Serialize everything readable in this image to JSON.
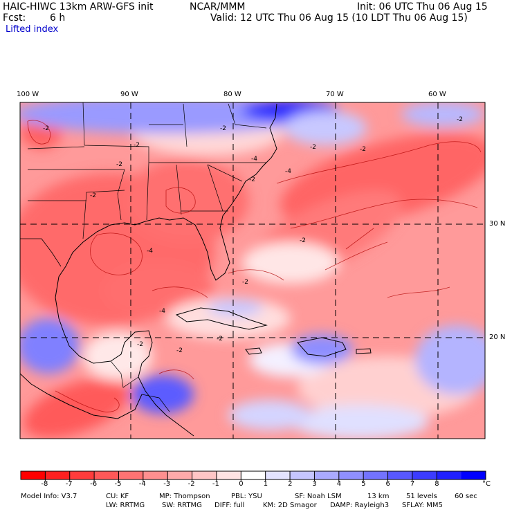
{
  "header": {
    "model": "HAIC-HIWC 13km ARW-GFS init",
    "org": "NCAR/MMM",
    "init": "Init: 06 UTC Thu 06 Aug 15",
    "fcst_label": "Fcst:",
    "fcst_value": "6 h",
    "valid": "Valid: 12 UTC Thu 06 Aug 15 (10 LDT Thu 06 Aug 15)",
    "field": "Lifted index"
  },
  "map": {
    "lon_labels": [
      "100 W",
      "90 W",
      "80 W",
      "70 W",
      "60 W"
    ],
    "lat_labels": [
      "30 N",
      "20 N"
    ],
    "contour_labels": [
      "-2",
      "-2",
      "-2",
      "-2",
      "-4",
      "-2",
      "-2",
      "-4",
      "-2",
      "-2",
      "-2",
      "-4",
      "-2",
      "-2",
      "-2",
      "-2",
      "-4",
      "-2"
    ]
  },
  "colorbar": {
    "labels": [
      "-8",
      "-7",
      "-6",
      "-5",
      "-4",
      "-3",
      "-2",
      "-1",
      "0",
      "1",
      "2",
      "3",
      "4",
      "5",
      "6",
      "7",
      "8"
    ],
    "unit": "°C",
    "colors": [
      "#ff0000",
      "#ff2020",
      "#ff3c3c",
      "#ff5858",
      "#ff7373",
      "#ff8f8f",
      "#ffaaaa",
      "#ffc6c6",
      "#ffe3e3",
      "#ffffff",
      "#e3e3ff",
      "#c6c6ff",
      "#aaaaff",
      "#8f8fff",
      "#7373ff",
      "#5858ff",
      "#3c3cff",
      "#2020ff",
      "#0000ff"
    ]
  },
  "model_info": {
    "line1": [
      "Model Info: V3.7",
      "CU: KF",
      "MP: Thompson",
      "PBL: YSU",
      "SF: Noah LSM",
      "13 km",
      "51 levels",
      "60 sec"
    ],
    "line2": [
      "LW: RRTMG",
      "SW: RRTMG",
      "DIFF: full",
      "KM: 2D Smagor",
      "DAMP: Rayleigh3",
      "SFLAY: MM5"
    ]
  }
}
